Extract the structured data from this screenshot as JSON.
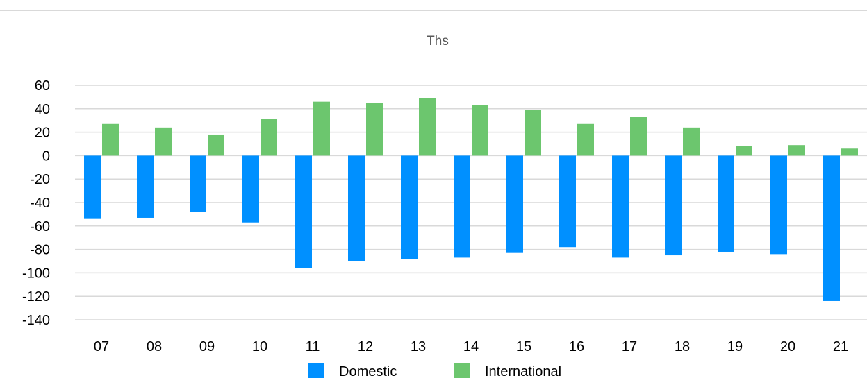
{
  "chart_data": {
    "type": "bar",
    "title": "Ths",
    "xlabel": "",
    "ylabel": "",
    "categories": [
      "07",
      "08",
      "09",
      "10",
      "11",
      "12",
      "13",
      "14",
      "15",
      "16",
      "17",
      "18",
      "19",
      "20",
      "21"
    ],
    "series": [
      {
        "name": "Domestic",
        "color": "#0090FF",
        "values": [
          -54,
          -53,
          -48,
          -57,
          -96,
          -90,
          -88,
          -87,
          -83,
          -78,
          -87,
          -85,
          -82,
          -84,
          -124
        ]
      },
      {
        "name": "International",
        "color": "#6CC66E",
        "values": [
          27,
          24,
          18,
          31,
          46,
          45,
          49,
          43,
          39,
          27,
          33,
          24,
          8,
          9,
          6
        ]
      }
    ],
    "ylim": [
      -140,
      60
    ],
    "yticks": [
      60,
      40,
      20,
      0,
      -20,
      -40,
      -60,
      -80,
      -100,
      -120,
      -140
    ],
    "grid": true,
    "legend": "bottom"
  }
}
